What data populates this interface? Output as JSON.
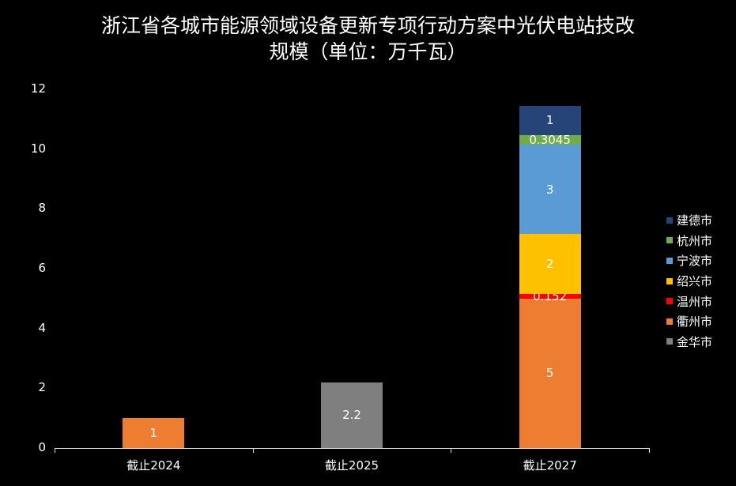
{
  "chart_data": {
    "type": "bar",
    "stacked": true,
    "title": "浙江省各城市能源领域设备更新专项行动方案中光伏电站技改规模（单位：万千瓦）",
    "title_lines": [
      "浙江省各城市能源领域设备更新专项行动方案中光伏电站技改",
      "规模（单位：万千瓦）"
    ],
    "categories": [
      "截止2024",
      "截止2025",
      "截止2027"
    ],
    "series": [
      {
        "name": "金华市",
        "color": "#7f7f7f",
        "values": [
          0,
          2.2,
          0
        ]
      },
      {
        "name": "衢州市",
        "color": "#ed7d31",
        "values": [
          1,
          0,
          5
        ]
      },
      {
        "name": "温州市",
        "color": "#ff0000",
        "values": [
          0,
          0,
          0.152
        ]
      },
      {
        "name": "绍兴市",
        "color": "#ffc000",
        "values": [
          0,
          0,
          2
        ]
      },
      {
        "name": "宁波市",
        "color": "#5b9bd5",
        "values": [
          0,
          0,
          3
        ]
      },
      {
        "name": "杭州市",
        "color": "#70ad47",
        "values": [
          0,
          0,
          0.3045
        ]
      },
      {
        "name": "建德市",
        "color": "#264478",
        "values": [
          0,
          0,
          1
        ]
      }
    ],
    "legend": [
      "建德市",
      "杭州市",
      "宁波市",
      "绍兴市",
      "温州市",
      "衢州市",
      "金华市"
    ],
    "legend_position": "right",
    "xlabel": "",
    "ylabel": "",
    "ylim": [
      0,
      12
    ],
    "yticks": [
      "0",
      "2",
      "4",
      "6",
      "8",
      "10",
      "12"
    ],
    "grid": false,
    "data_labels": {
      "截止2024": [
        {
          "series": "衢州市",
          "label": "1"
        }
      ],
      "截止2025": [
        {
          "series": "金华市",
          "label": "2.2"
        }
      ],
      "截止2027": [
        {
          "series": "衢州市",
          "label": "5"
        },
        {
          "series": "温州市",
          "label": "0.152"
        },
        {
          "series": "绍兴市",
          "label": "2"
        },
        {
          "series": "宁波市",
          "label": "3"
        },
        {
          "series": "杭州市",
          "label": "0.3045"
        },
        {
          "series": "建德市",
          "label": "1"
        }
      ]
    }
  }
}
